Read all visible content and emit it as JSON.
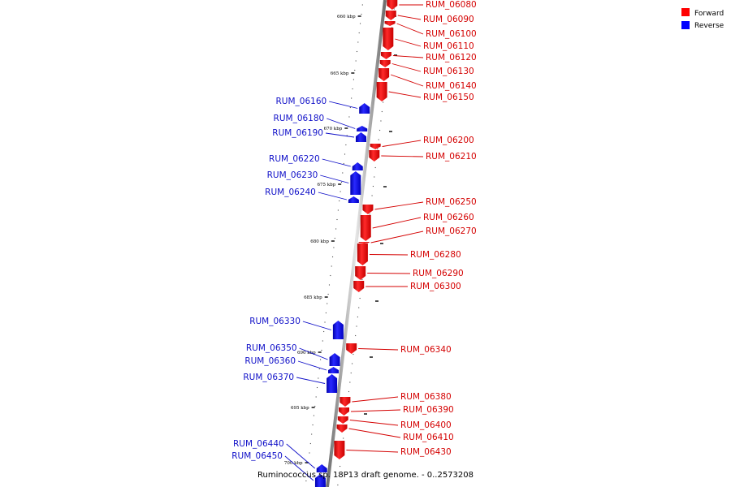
{
  "legend": [
    {
      "label": "Forward",
      "color": "#ff0000"
    },
    {
      "label": "Reverse",
      "color": "#0000ff"
    }
  ],
  "caption": "Ruminococcus sp. 18P13 draft genome. - 0..2573208",
  "ticks": [
    "660 kbp",
    "665 kbp",
    "670 kbp",
    "675 kbp",
    "680 kbp",
    "685 kbp",
    "690 kbp",
    "695 kbp",
    "700 kbp"
  ],
  "genes": [
    {
      "name": "RUM_06080",
      "strand": "forward"
    },
    {
      "name": "RUM_06090",
      "strand": "forward"
    },
    {
      "name": "RUM_06100",
      "strand": "forward"
    },
    {
      "name": "RUM_06110",
      "strand": "forward"
    },
    {
      "name": "RUM_06120",
      "strand": "forward"
    },
    {
      "name": "RUM_06130",
      "strand": "forward"
    },
    {
      "name": "RUM_06140",
      "strand": "forward"
    },
    {
      "name": "RUM_06150",
      "strand": "forward"
    },
    {
      "name": "RUM_06160",
      "strand": "reverse"
    },
    {
      "name": "RUM_06180",
      "strand": "reverse"
    },
    {
      "name": "RUM_06190",
      "strand": "reverse"
    },
    {
      "name": "RUM_06200",
      "strand": "forward"
    },
    {
      "name": "RUM_06210",
      "strand": "forward"
    },
    {
      "name": "RUM_06220",
      "strand": "reverse"
    },
    {
      "name": "RUM_06230",
      "strand": "reverse"
    },
    {
      "name": "RUM_06240",
      "strand": "reverse"
    },
    {
      "name": "RUM_06250",
      "strand": "forward"
    },
    {
      "name": "RUM_06260",
      "strand": "forward"
    },
    {
      "name": "RUM_06270",
      "strand": "forward"
    },
    {
      "name": "RUM_06280",
      "strand": "forward"
    },
    {
      "name": "RUM_06290",
      "strand": "forward"
    },
    {
      "name": "RUM_06300",
      "strand": "forward"
    },
    {
      "name": "RUM_06330",
      "strand": "reverse"
    },
    {
      "name": "RUM_06340",
      "strand": "forward"
    },
    {
      "name": "RUM_06350",
      "strand": "reverse"
    },
    {
      "name": "RUM_06360",
      "strand": "reverse"
    },
    {
      "name": "RUM_06370",
      "strand": "reverse"
    },
    {
      "name": "RUM_06380",
      "strand": "forward"
    },
    {
      "name": "RUM_06390",
      "strand": "forward"
    },
    {
      "name": "RUM_06400",
      "strand": "forward"
    },
    {
      "name": "RUM_06410",
      "strand": "forward"
    },
    {
      "name": "RUM_06430",
      "strand": "forward"
    },
    {
      "name": "RUM_06440",
      "strand": "reverse"
    },
    {
      "name": "RUM_06450",
      "strand": "reverse"
    }
  ]
}
